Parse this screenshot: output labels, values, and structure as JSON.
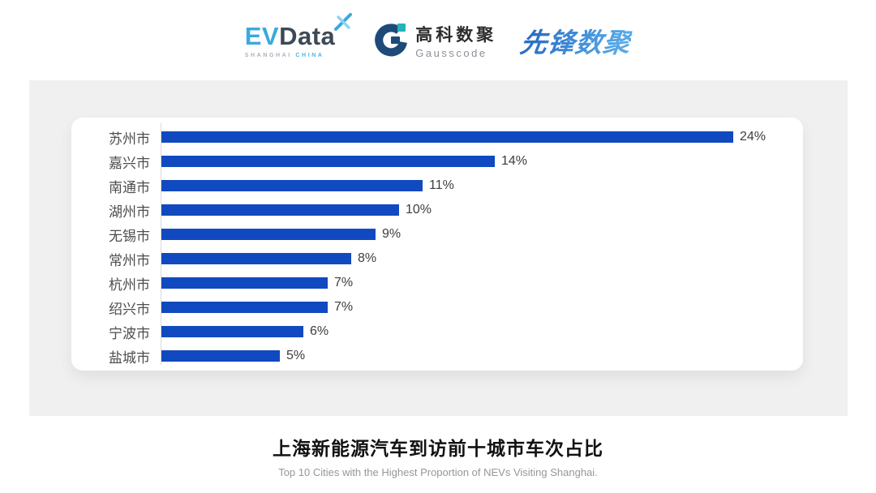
{
  "header": {
    "evdata": {
      "ev": "EV",
      "data": "Data",
      "tagline_left": "SHANGHAI",
      "tagline_right": "CHINA"
    },
    "gausscode": {
      "cn": "高科数聚",
      "en": "Gausscode"
    },
    "pioneer": {
      "text": "先锋数聚"
    }
  },
  "chart_data": {
    "type": "bar",
    "orientation": "horizontal",
    "title": "上海新能源汽车到访前十城市车次占比",
    "subtitle": "Top 10 Cities with the Highest Proportion of  NEVs Visiting Shanghai.",
    "categories": [
      "苏州市",
      "嘉兴市",
      "南通市",
      "湖州市",
      "无锡市",
      "常州市",
      "杭州市",
      "绍兴市",
      "宁波市",
      "盐城市"
    ],
    "values": [
      24,
      14,
      11,
      10,
      9,
      8,
      7,
      7,
      6,
      5
    ],
    "value_labels": [
      "24%",
      "14%",
      "11%",
      "10%",
      "9%",
      "8%",
      "7%",
      "7%",
      "6%",
      "5%"
    ],
    "unit": "%",
    "xlim": [
      0,
      25
    ],
    "grid": false,
    "legend": false,
    "bar_color": "#1149c0",
    "axis_line_color": "#d9d9d9"
  },
  "colors": {
    "panel_bg": "#f0f0f0",
    "card_bg": "#ffffff",
    "evdata_blue": "#3aa9de",
    "evdata_dark": "#3d4956",
    "gausscode_navy": "#1d4a78",
    "gausscode_teal": "#23b3bb",
    "pioneer_blue": "#3a87d6",
    "title_color": "#111111",
    "subtitle_color": "#979797"
  }
}
